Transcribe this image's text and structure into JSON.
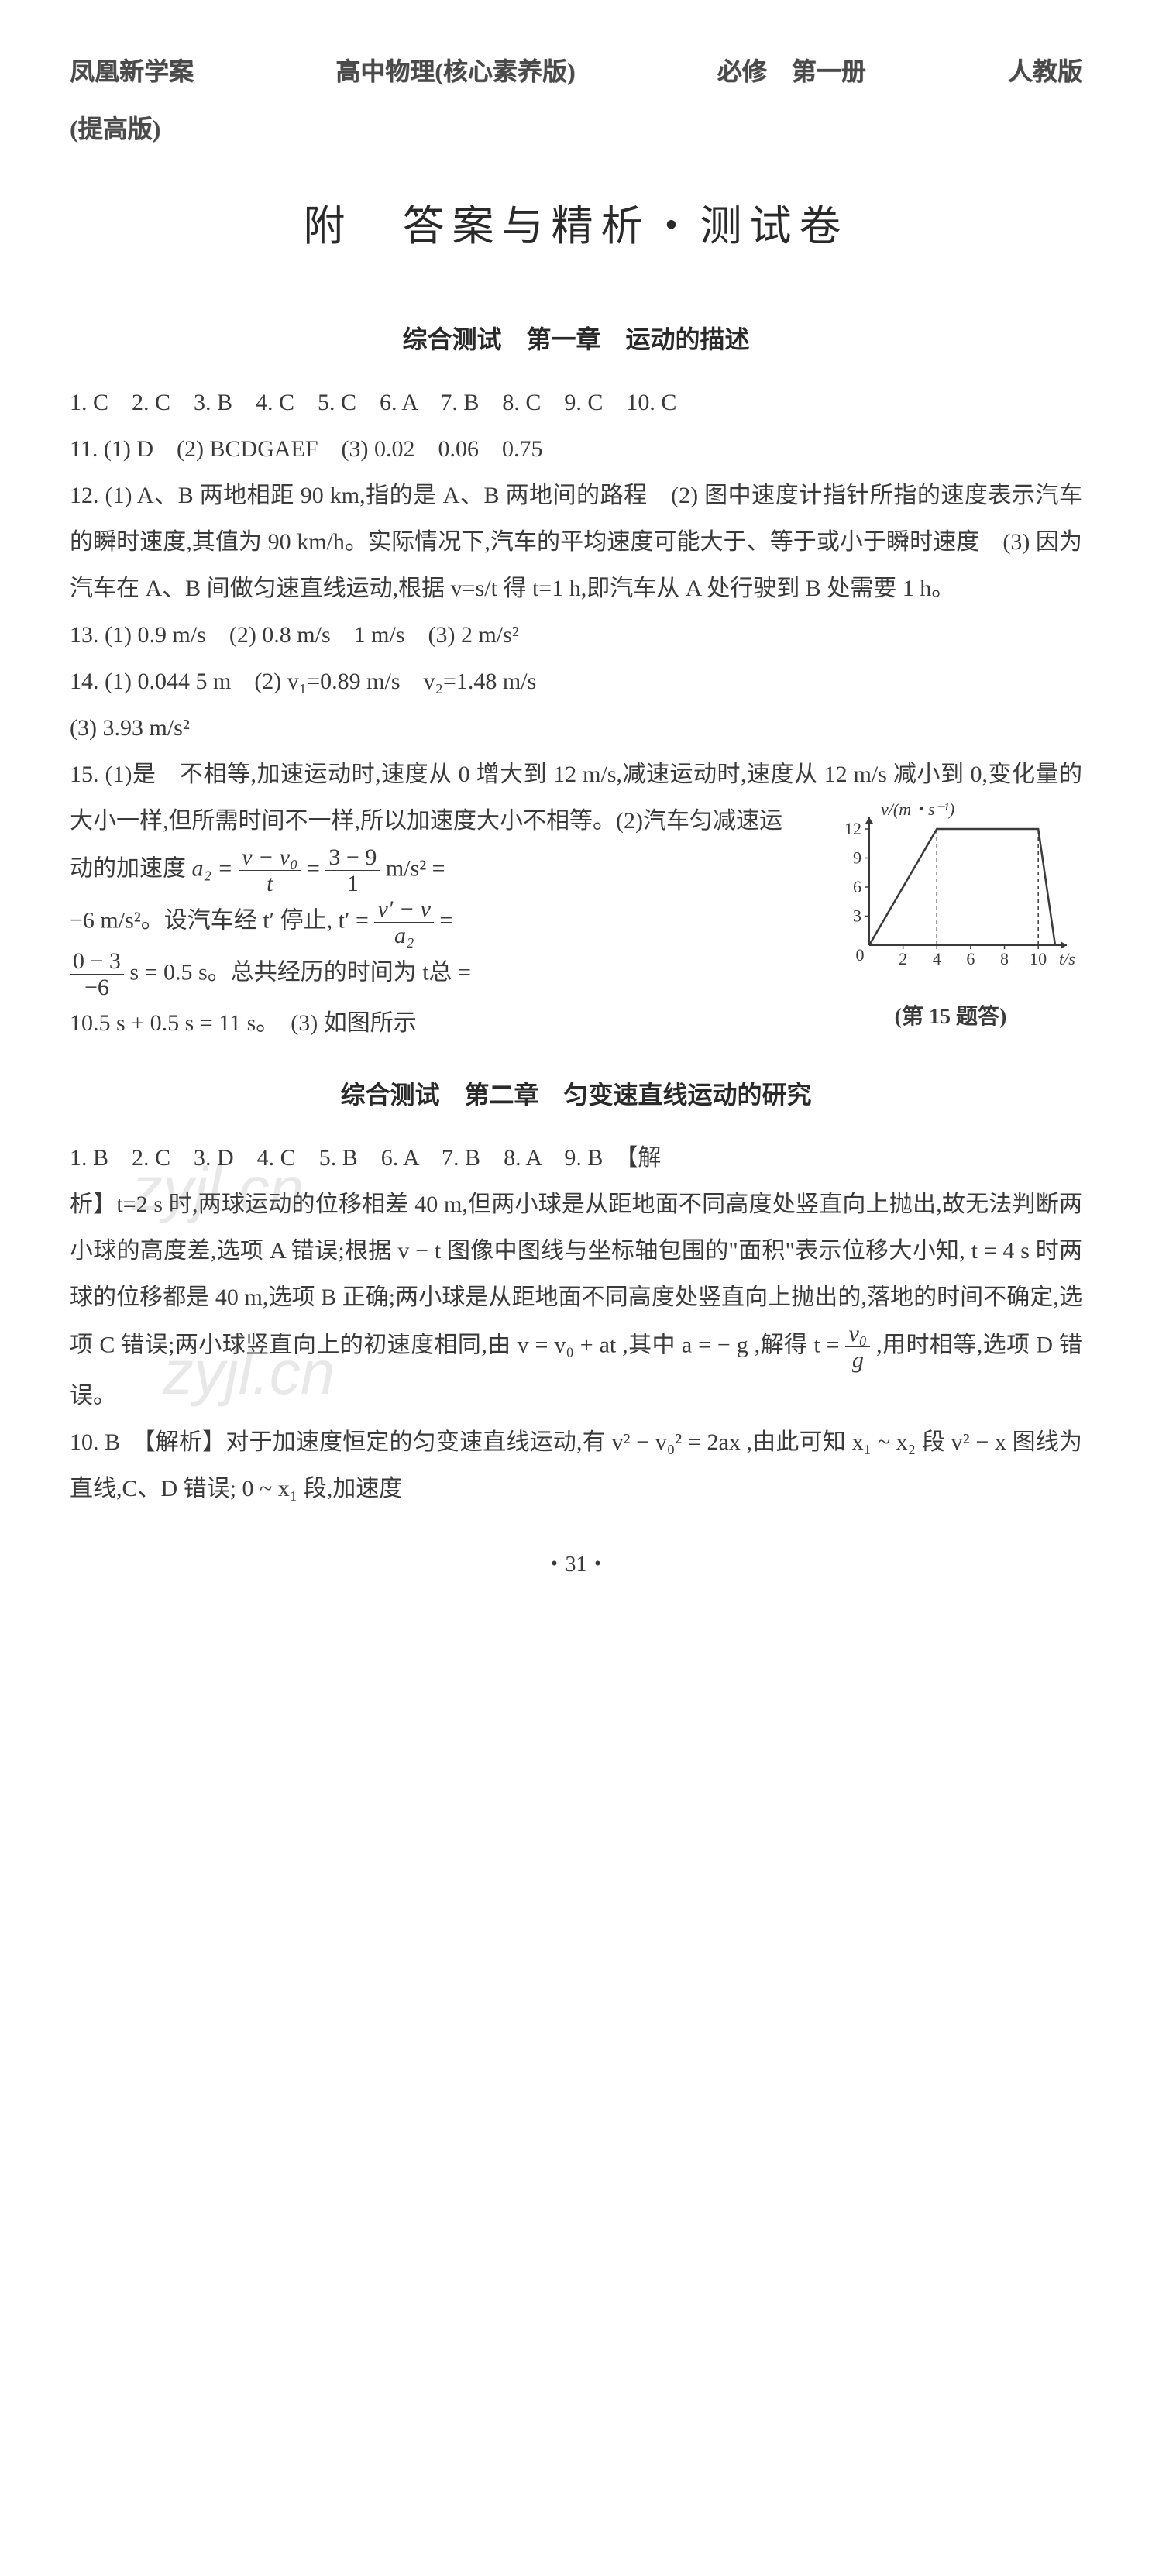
{
  "header": {
    "left": "凤凰新学案",
    "center": "高中物理(核心素养版)",
    "vol": "必修　第一册",
    "publisher": "人教版",
    "sub": "(提高版)"
  },
  "main_title": "附　答案与精析・测试卷",
  "section1": {
    "title": "综合测试　第一章　运动的描述",
    "q1_10": "1. C　2. C　3. B　4. C　5. C　6. A　7. B　8. C　9. C　10. C",
    "q11": "11. (1) D　(2) BCDGAEF　(3) 0.02　0.06　0.75",
    "q12": "12. (1) A、B 两地相距 90 km,指的是 A、B 两地间的路程　(2) 图中速度计指针所指的速度表示汽车的瞬时速度,其值为 90 km/h。实际情况下,汽车的平均速度可能大于、等于或小于瞬时速度　(3) 因为汽车在 A、B 间做匀速直线运动,根据 v=s/t 得 t=1 h,即汽车从 A 处行驶到 B 处需要 1 h。",
    "q13": "13. (1) 0.9 m/s　(2) 0.8 m/s　1 m/s　(3) 2 m/s²",
    "q14": "14. (1) 0.044 5 m　(2) v₁=0.89 m/s　v₂=1.48 m/s",
    "q14b": "(3) 3.93 m/s²",
    "q15a": "15. (1)是　不相等,加速运动时,速度从 0 增大到 12 m/s,减速运动时,速度从 12 m/s 减小到 0,变化量的大小一样,但所需时间不一样,所以加速度大小不相等。(2)汽车匀减速运",
    "q15b_pre": "动的加速度 ",
    "q15b_eq1": "a₂ = ",
    "q15b_frac1_num": "v − v₀",
    "q15b_frac1_den": "t",
    "q15b_mid1": " = ",
    "q15b_frac2_num": "3 − 9",
    "q15b_frac2_den": "1",
    "q15b_post1": " m/s² =",
    "q15c_pre": "−6 m/s²。设汽车经 t′ 停止, t′ = ",
    "q15c_frac_num": "v′ − v",
    "q15c_frac_den": "a₂",
    "q15c_post": " =",
    "q15d_frac_num": "0 − 3",
    "q15d_frac_den": "−6",
    "q15d_post": " s = 0.5 s。总共经历的时间为 t总 =",
    "q15e": "10.5 s + 0.5 s = 11 s。　(3) 如图所示",
    "chart": {
      "type": "line",
      "ylabel": "v/(m・s⁻¹)",
      "xlabel": "t/s",
      "xvalues": [
        0,
        2,
        4,
        6,
        8,
        10
      ],
      "yvalues": [
        0,
        3,
        6,
        9,
        12
      ],
      "points": [
        [
          0,
          0
        ],
        [
          4,
          12
        ],
        [
          10,
          12
        ],
        [
          11,
          0
        ]
      ],
      "dashed_vert": [
        4,
        10
      ],
      "line_color": "#3a3a3a",
      "grid_color": "#3a3a3a",
      "background": "#ffffff",
      "axis_fontsize": 22,
      "caption": "(第 15 题答)"
    }
  },
  "section2": {
    "title": "综合测试　第二章　匀变速直线运动的研究",
    "q1_9": "1. B　2. C　3. D　4. C　5. B　6. A　7. B　8. A　9. B　【解",
    "q9b_pre": "析】t=2 s 时,两球运动的位移相差 40 m,但两小球是从距地面不同高度处竖直向上抛出,故无法判断两小球的高度差,选项 A 错误;根据 v − t 图像中图线与坐标轴包围的\"面积\"表示位移大小知, t = 4 s 时两球的位移都是 40 m,选项 B 正确;两小球是从距地面不同高度处竖直向上抛出的,落地的时间不确定,选项 C 错误;两小球竖直向上的初速度相同,由 v = v₀ + at ,其中 a = − g ,解得 t = ",
    "q9b_frac_num": "v₀",
    "q9b_frac_den": "g",
    "q9b_post": " ,用时相等,选项 D 错误。",
    "q10": "10. B　【解析】对于加速度恒定的匀变速直线运动,有 v² − v₀² = 2ax ,由此可知 x₁ ~ x₂ 段 v² − x 图线为直线,C、D 错误; 0 ~ x₁ 段,加速度"
  },
  "page_number": "・31・",
  "watermark_text": "zyjl.cn"
}
